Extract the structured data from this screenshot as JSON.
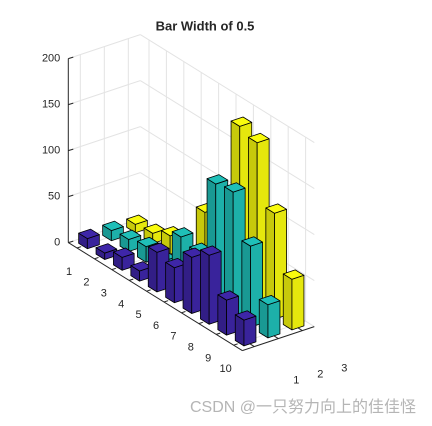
{
  "chart_data": {
    "type": "bar3",
    "title": "Bar Width of 0.5",
    "categories": [
      1,
      2,
      3,
      4,
      5,
      6,
      7,
      8,
      9,
      10
    ],
    "columns": [
      1,
      2,
      3
    ],
    "bar_width": 0.5,
    "series": [
      {
        "color": "#3e26a8",
        "values": [
          11,
          7,
          14,
          11,
          43,
          38,
          61,
          75,
          38,
          28
        ]
      },
      {
        "color": "#1fbfb8",
        "values": [
          11,
          13,
          17,
          13,
          51,
          46,
          132,
          135,
          88,
          36
        ]
      },
      {
        "color": "#f9fb0e",
        "values": [
          9,
          11,
          20,
          9,
          69,
          76,
          186,
          180,
          115,
          55
        ]
      }
    ],
    "xlim": [
      0.5,
      3.5
    ],
    "xticks": [
      1,
      2,
      3
    ],
    "ylim": [
      0.5,
      10.5
    ],
    "yticks": [
      1,
      2,
      3,
      4,
      5,
      6,
      7,
      8,
      9,
      10
    ],
    "zlim": [
      0,
      200
    ],
    "zticks": [
      0,
      50,
      100,
      150,
      200
    ],
    "grid": true,
    "watermark": "CSDN @一只努力向上的佳佳怪"
  }
}
